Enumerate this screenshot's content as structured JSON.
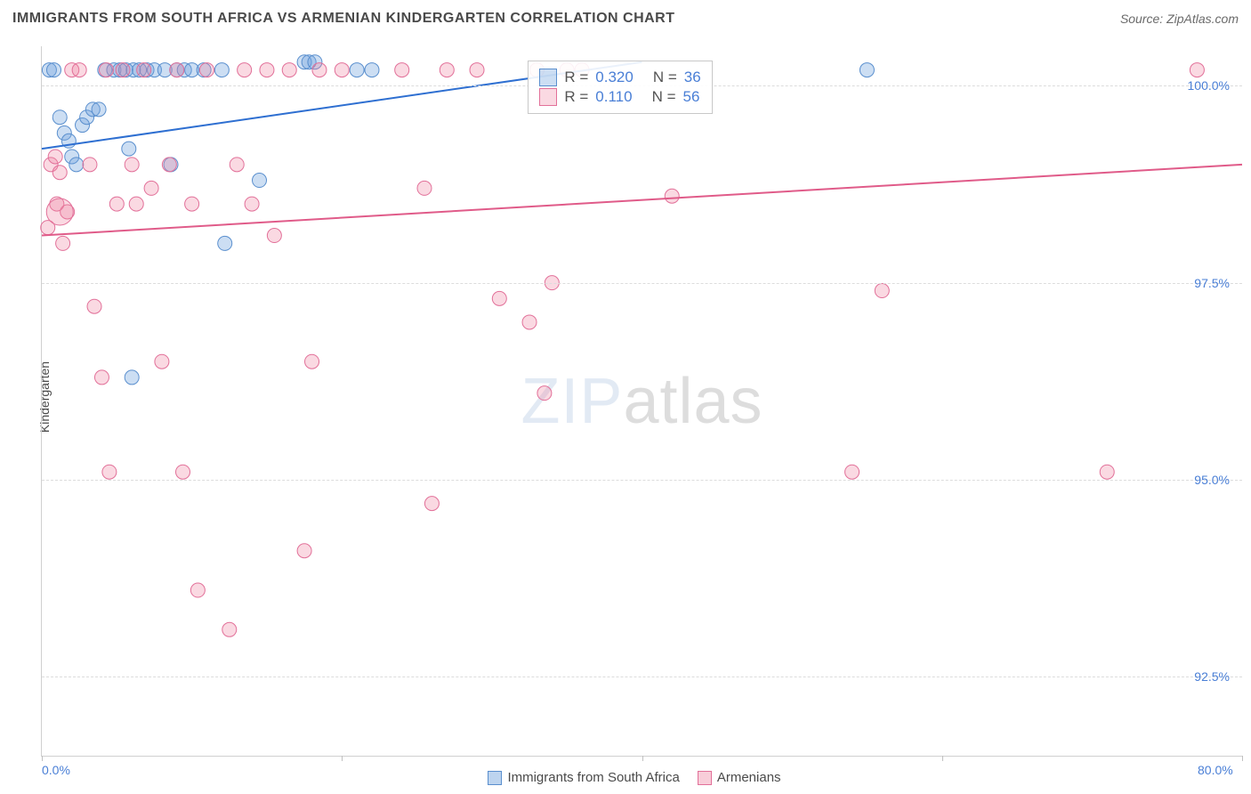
{
  "title": "IMMIGRANTS FROM SOUTH AFRICA VS ARMENIAN KINDERGARTEN CORRELATION CHART",
  "source": "Source: ZipAtlas.com",
  "ylabel": "Kindergarten",
  "watermark_zip": "ZIP",
  "watermark_atlas": "atlas",
  "chart": {
    "type": "scatter",
    "xlim": [
      0,
      80
    ],
    "ylim": [
      91.5,
      100.5
    ],
    "xtick_labels": [
      {
        "pos": 0,
        "label": "0.0%"
      },
      {
        "pos": 80,
        "label": "80.0%"
      }
    ],
    "xtick_marks": [
      0,
      20,
      40,
      60,
      80
    ],
    "ytick_labels": [
      {
        "pos": 100,
        "label": "100.0%"
      },
      {
        "pos": 97.5,
        "label": "97.5%"
      },
      {
        "pos": 95,
        "label": "95.0%"
      },
      {
        "pos": 92.5,
        "label": "92.5%"
      }
    ],
    "grid_color": "#dcdcdc",
    "background_color": "#ffffff",
    "series": [
      {
        "name": "Immigrants from South Africa",
        "color_fill": "rgba(108,160,220,0.35)",
        "color_stroke": "#5a8fce",
        "marker_radius": 8,
        "trend": {
          "x1": 0,
          "y1": 99.2,
          "x2": 40,
          "y2": 100.3,
          "stroke": "#2e6fd1",
          "width": 2
        },
        "R": "0.320",
        "N": "36",
        "points": [
          {
            "x": 0.5,
            "y": 100.2
          },
          {
            "x": 0.8,
            "y": 100.2
          },
          {
            "x": 1.2,
            "y": 99.6
          },
          {
            "x": 1.5,
            "y": 99.4
          },
          {
            "x": 1.8,
            "y": 99.3
          },
          {
            "x": 2.0,
            "y": 99.1
          },
          {
            "x": 2.3,
            "y": 99.0
          },
          {
            "x": 2.7,
            "y": 99.5
          },
          {
            "x": 3.0,
            "y": 99.6
          },
          {
            "x": 3.4,
            "y": 99.7
          },
          {
            "x": 3.8,
            "y": 99.7
          },
          {
            "x": 4.2,
            "y": 100.2
          },
          {
            "x": 4.8,
            "y": 100.2
          },
          {
            "x": 5.2,
            "y": 100.2
          },
          {
            "x": 5.6,
            "y": 100.2
          },
          {
            "x": 5.8,
            "y": 99.2
          },
          {
            "x": 6.1,
            "y": 100.2
          },
          {
            "x": 6.5,
            "y": 100.2
          },
          {
            "x": 7.0,
            "y": 100.2
          },
          {
            "x": 7.5,
            "y": 100.2
          },
          {
            "x": 8.2,
            "y": 100.2
          },
          {
            "x": 8.6,
            "y": 99.0
          },
          {
            "x": 9.0,
            "y": 100.2
          },
          {
            "x": 9.5,
            "y": 100.2
          },
          {
            "x": 10.0,
            "y": 100.2
          },
          {
            "x": 10.8,
            "y": 100.2
          },
          {
            "x": 12.0,
            "y": 100.2
          },
          {
            "x": 12.2,
            "y": 98.0
          },
          {
            "x": 14.5,
            "y": 98.8
          },
          {
            "x": 17.5,
            "y": 100.3
          },
          {
            "x": 17.8,
            "y": 100.3
          },
          {
            "x": 18.2,
            "y": 100.3
          },
          {
            "x": 21.0,
            "y": 100.2
          },
          {
            "x": 22.0,
            "y": 100.2
          },
          {
            "x": 6.0,
            "y": 96.3
          },
          {
            "x": 55.0,
            "y": 100.2
          }
        ]
      },
      {
        "name": "Armenians",
        "color_fill": "rgba(238,130,160,0.30)",
        "color_stroke": "#e27099",
        "marker_radius": 8,
        "trend": {
          "x1": 0,
          "y1": 98.1,
          "x2": 80,
          "y2": 99.0,
          "stroke": "#e05b89",
          "width": 2
        },
        "R": "0.110",
        "N": "56",
        "points": [
          {
            "x": 0.4,
            "y": 98.2
          },
          {
            "x": 0.6,
            "y": 99.0
          },
          {
            "x": 0.9,
            "y": 99.1
          },
          {
            "x": 1.0,
            "y": 98.5
          },
          {
            "x": 1.2,
            "y": 98.9
          },
          {
            "x": 1.4,
            "y": 98.0
          },
          {
            "x": 1.7,
            "y": 98.4
          },
          {
            "x": 2.0,
            "y": 100.2
          },
          {
            "x": 2.5,
            "y": 100.2
          },
          {
            "x": 3.2,
            "y": 99.0
          },
          {
            "x": 3.5,
            "y": 97.2
          },
          {
            "x": 4.0,
            "y": 96.3
          },
          {
            "x": 4.3,
            "y": 100.2
          },
          {
            "x": 4.5,
            "y": 95.1
          },
          {
            "x": 5.0,
            "y": 98.5
          },
          {
            "x": 5.4,
            "y": 100.2
          },
          {
            "x": 6.0,
            "y": 99.0
          },
          {
            "x": 6.3,
            "y": 98.5
          },
          {
            "x": 6.8,
            "y": 100.2
          },
          {
            "x": 7.3,
            "y": 98.7
          },
          {
            "x": 8.0,
            "y": 96.5
          },
          {
            "x": 8.5,
            "y": 99.0
          },
          {
            "x": 9.0,
            "y": 100.2
          },
          {
            "x": 9.4,
            "y": 95.1
          },
          {
            "x": 10.0,
            "y": 98.5
          },
          {
            "x": 10.4,
            "y": 93.6
          },
          {
            "x": 11.0,
            "y": 100.2
          },
          {
            "x": 12.5,
            "y": 93.1
          },
          {
            "x": 13.0,
            "y": 99.0
          },
          {
            "x": 13.5,
            "y": 100.2
          },
          {
            "x": 14.0,
            "y": 98.5
          },
          {
            "x": 15.0,
            "y": 100.2
          },
          {
            "x": 15.5,
            "y": 98.1
          },
          {
            "x": 16.5,
            "y": 100.2
          },
          {
            "x": 17.5,
            "y": 94.1
          },
          {
            "x": 18.0,
            "y": 96.5
          },
          {
            "x": 18.5,
            "y": 100.2
          },
          {
            "x": 20.0,
            "y": 100.2
          },
          {
            "x": 24.0,
            "y": 100.2
          },
          {
            "x": 25.5,
            "y": 98.7
          },
          {
            "x": 26.0,
            "y": 94.7
          },
          {
            "x": 27.0,
            "y": 100.2
          },
          {
            "x": 29.0,
            "y": 100.2
          },
          {
            "x": 30.5,
            "y": 97.3
          },
          {
            "x": 32.5,
            "y": 97.0
          },
          {
            "x": 33.0,
            "y": 100.2
          },
          {
            "x": 33.5,
            "y": 96.1
          },
          {
            "x": 34.0,
            "y": 97.5
          },
          {
            "x": 35.0,
            "y": 100.2
          },
          {
            "x": 36.0,
            "y": 100.2
          },
          {
            "x": 42.0,
            "y": 98.6
          },
          {
            "x": 54.0,
            "y": 95.1
          },
          {
            "x": 56.0,
            "y": 97.4
          },
          {
            "x": 71.0,
            "y": 95.1
          },
          {
            "x": 77.0,
            "y": 100.2
          },
          {
            "x": 1.2,
            "y": 98.4,
            "r": 15
          }
        ]
      }
    ],
    "legend_box": {
      "left_pct": 40.5,
      "top_pct": 2
    },
    "bottom_legend": [
      {
        "label": "Immigrants from South Africa",
        "fill": "rgba(108,160,220,0.45)",
        "stroke": "#5a8fce"
      },
      {
        "label": "Armenians",
        "fill": "rgba(238,130,160,0.40)",
        "stroke": "#e27099"
      }
    ]
  }
}
